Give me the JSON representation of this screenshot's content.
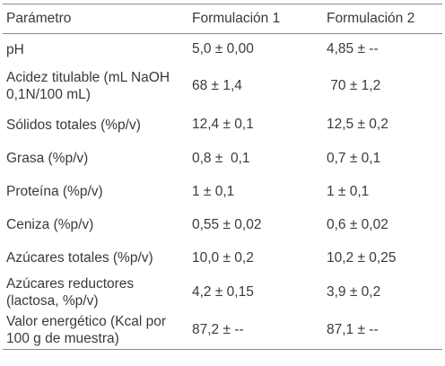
{
  "table": {
    "headers": [
      "Parámetro",
      "Formulación 1",
      "Formulación 2"
    ],
    "rows": [
      {
        "parameter": "pH",
        "f1": "5,0 ± 0,00",
        "f2": "4,85 ± --"
      },
      {
        "parameter": "Acidez titulable (mL NaOH 0,1N/100 mL)",
        "f1": "68 ± 1,4",
        "f2": " 70 ± 1,2"
      },
      {
        "parameter": "Sólidos totales (%p/v)",
        "f1": "12,4 ± 0,1",
        "f2": "12,5 ± 0,2"
      },
      {
        "parameter": "Grasa (%p/v)",
        "f1": "0,8 ±  0,1",
        "f2": "0,7 ± 0,1"
      },
      {
        "parameter": "Proteína (%p/v)",
        "f1": "1 ± 0,1",
        "f2": "1 ± 0,1"
      },
      {
        "parameter": "Ceniza (%p/v)",
        "f1": "0,55 ± 0,02",
        "f2": "0,6 ± 0,02"
      },
      {
        "parameter": "Azúcares totales (%p/v)",
        "f1": "10,0 ± 0,2",
        "f2": "10,2 ± 0,25"
      },
      {
        "parameter": "Azúcares reductores (lactosa, %p/v)",
        "f1": "4,2 ± 0,15",
        "f2": "3,9 ± 0,2"
      },
      {
        "parameter": "Valor energético (Kcal por 100 g de muestra)",
        "f1": "87,2 ± --",
        "f2": "87,1 ± --"
      }
    ]
  }
}
